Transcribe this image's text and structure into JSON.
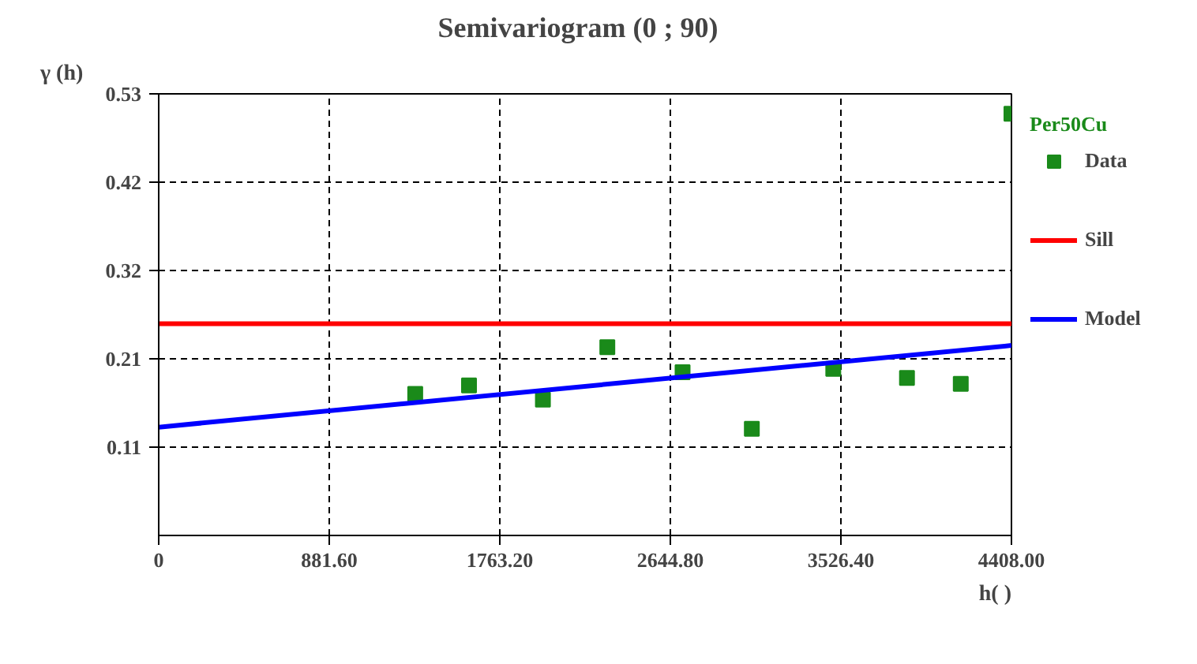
{
  "chart_data": {
    "type": "line",
    "title": "Semivariogram (0 ;   90)",
    "xlabel": "h( )",
    "ylabel": "γ (h)",
    "legend_title": "Per50Cu",
    "xlim": [
      0,
      4408
    ],
    "xticks": [
      0,
      {
        "value": 881.6,
        "label": "881.60"
      },
      {
        "value": 1763.2,
        "label": "1763.20"
      },
      {
        "value": 2644.8,
        "label": "2644.80"
      },
      {
        "value": 3526.4,
        "label": "3526.40"
      },
      {
        "value": 4408,
        "label": "4408.00"
      }
    ],
    "ylim": [
      0,
      0.53
    ],
    "yticks": [
      {
        "value": 0.106,
        "label": "0.11"
      },
      {
        "value": 0.212,
        "label": "0.21"
      },
      {
        "value": 0.318,
        "label": "0.32"
      },
      {
        "value": 0.424,
        "label": "0.42"
      },
      0.53
    ],
    "grid": true,
    "legend": "right",
    "series": [
      {
        "name": "Data",
        "type": "scatter",
        "marker": "square",
        "color": "#1a8a1a",
        "x": [
          1326,
          1604,
          1986,
          2319,
          2708,
          3066,
          3487,
          3868,
          4146,
          4408
        ],
        "values": [
          0.17,
          0.18,
          0.163,
          0.226,
          0.196,
          0.128,
          0.2,
          0.189,
          0.182,
          0.506
        ]
      },
      {
        "name": "Sill",
        "color": "#ff0000",
        "x": [
          0,
          4408
        ],
        "values": [
          0.254,
          0.254
        ]
      },
      {
        "name": "Model",
        "color": "#0000ff",
        "x": [
          0,
          4408
        ],
        "values": [
          0.13,
          0.228
        ]
      }
    ]
  }
}
